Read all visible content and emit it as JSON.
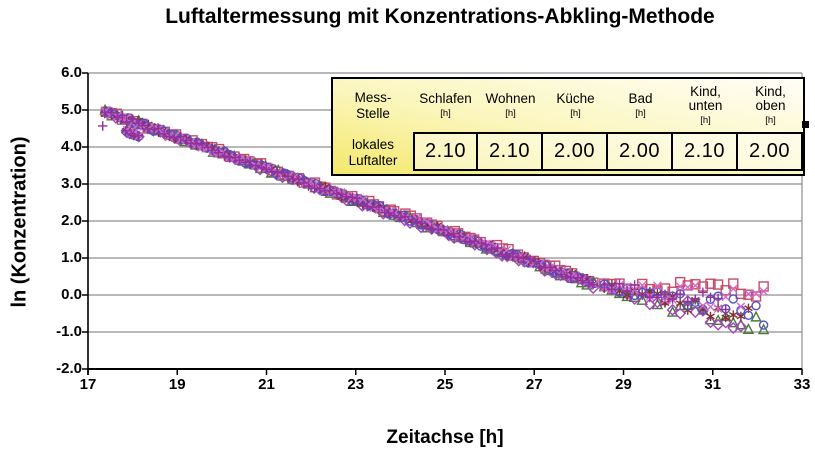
{
  "title": "Luftaltermessung mit Konzentrations-Abkling-Methode",
  "chart_data": {
    "type": "scatter",
    "title": "Luftaltermessung mit Konzentrations-Abkling-Methode",
    "xlabel": "Zeitachse [h]",
    "ylabel": "ln (Konzentration)",
    "xlim": [
      17,
      33
    ],
    "ylim": [
      -2.0,
      6.0
    ],
    "x_ticks": [
      17,
      19,
      21,
      23,
      25,
      27,
      29,
      31,
      33
    ],
    "y_ticks": [
      "6.0",
      "5.0",
      "4.0",
      "3.0",
      "2.0",
      "1.0",
      "0.0",
      "-1.0",
      "-2.0"
    ],
    "y_grid_values": [
      6,
      5,
      4,
      3,
      2,
      1,
      0,
      -1,
      -2
    ],
    "grid": "horizontal-gray",
    "legend": "none",
    "description": "Concentration decay curves (ln of tracer concentration vs time) for six rooms; tight linear band from (17.4, 5.0) to (28.4, 0.3), then noisy divergent tails down to about -1.5 near t=32.3",
    "model": {
      "t_start": 17.4,
      "band_end": 28.4,
      "lnC0": 4.95,
      "base_slope": -0.425,
      "band_step": 0.12,
      "band_noise": 0.07,
      "conv_value": 0.27,
      "tail_step": 0.17,
      "tail_noise_base": 0.08,
      "tail_noise_growth": 0.09,
      "dip": {
        "t0": 17.86,
        "dt": 0.09,
        "count": 4,
        "v0": 4.44,
        "dv": -0.05
      }
    },
    "series": [
      {
        "name": "square-series",
        "marker": "square",
        "color": "#C84B66",
        "slope_offset": 0.006,
        "tail_slope": -0.03,
        "tail_end": 32.3,
        "tail_noise_scale": 0.7,
        "dip": false,
        "seed": 11
      },
      {
        "name": "triangle-series",
        "marker": "triangle",
        "color": "#4A7A3C",
        "slope_offset": -0.003,
        "tail_slope": -0.34,
        "tail_end": 32.2,
        "tail_noise_scale": 1.0,
        "dip": false,
        "seed": 44
      },
      {
        "name": "diamond-series",
        "marker": "diamond",
        "color": "#A347B8",
        "slope_offset": -0.006,
        "tail_slope": -0.3,
        "tail_end": 31.7,
        "tail_noise_scale": 1.0,
        "dip": true,
        "seed": 55
      },
      {
        "name": "asterisk-series",
        "marker": "asterisk",
        "color": "#823030",
        "slope_offset": 0.002,
        "tail_slope": -0.22,
        "tail_end": 31.9,
        "tail_noise_scale": 1.0,
        "dip": true,
        "seed": 66
      },
      {
        "name": "circle-series",
        "marker": "circle",
        "color": "#5050C8",
        "slope_offset": 0.0,
        "tail_slope": -0.2,
        "tail_end": 32.3,
        "tail_noise_scale": 1.0,
        "dip": true,
        "seed": 33
      },
      {
        "name": "x-series",
        "marker": "x",
        "color": "#D468C8",
        "slope_offset": 0.003,
        "tail_slope": -0.13,
        "tail_end": 32.2,
        "tail_noise_scale": 1.0,
        "dip": true,
        "seed": 22
      },
      {
        "name": "plus-series",
        "marker": "plus",
        "color": "#93309B",
        "slope_offset": -0.002,
        "tail_slope": -0.16,
        "tail_end": 31.4,
        "tail_noise_scale": 1.0,
        "dip": true,
        "seed": 77,
        "extra_points": [
          [
            17.33,
            4.57
          ]
        ]
      }
    ],
    "corner_marker": {
      "shape": "filled-square",
      "color": "#000000"
    }
  },
  "table": {
    "corner_lines": [
      "Mess-",
      "Stelle"
    ],
    "unit": "[h]",
    "row_label_lines": [
      "lokales",
      "Luftalter"
    ],
    "columns": [
      {
        "label": "Schlafen",
        "value": "2.10"
      },
      {
        "label": "Wohnen",
        "value": "2.10"
      },
      {
        "label": "Küche",
        "value": "2.00"
      },
      {
        "label": "Bad",
        "value": "2.00"
      },
      {
        "label": "Kind, unten",
        "value": "2.10"
      },
      {
        "label": "Kind, oben",
        "value": "2.00"
      }
    ]
  },
  "colors": {
    "grid": "#8F8F8F",
    "axis": "#000000",
    "table_yellow": "#F3E86C",
    "background": "#FFFFFF"
  }
}
